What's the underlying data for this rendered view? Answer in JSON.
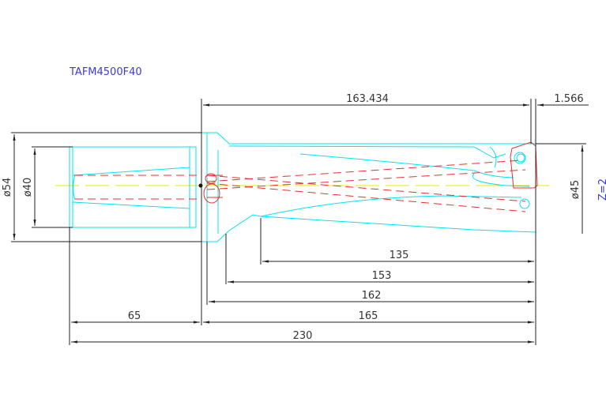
{
  "title": "TAFM4500F40",
  "flutes_label": "Z=2",
  "dimensions": {
    "d_shank_outer": "ø54",
    "d_shank": "ø40",
    "d_cut": "ø45",
    "len_flute": "163.434",
    "len_tip": "1.566",
    "len_135": "135",
    "len_153": "153",
    "len_162": "162",
    "len_shank": "65",
    "len_body": "165",
    "len_total": "230"
  },
  "colors": {
    "outline": "#00e5f0",
    "hidden": "#e83030",
    "dimension": "#222222",
    "label": "#3a3adf",
    "centerline": "#e8e800"
  }
}
